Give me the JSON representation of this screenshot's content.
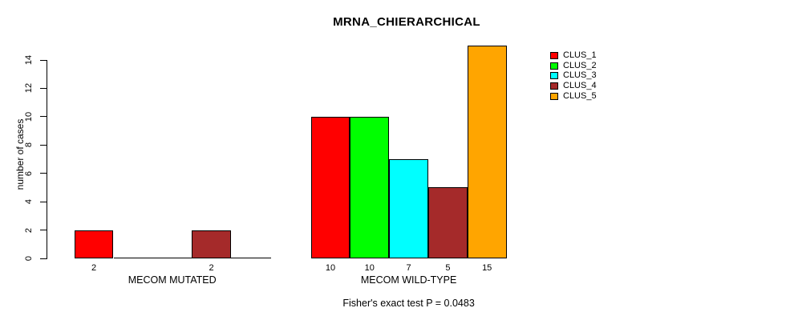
{
  "chart_data": {
    "type": "bar",
    "title": "MRNA_CHIERARCHICAL",
    "ylabel": "number of cases",
    "subtitle": "Fisher's exact test P = 0.0483",
    "yticks": [
      0,
      2,
      4,
      6,
      8,
      10,
      12,
      14
    ],
    "ylim": [
      0,
      15
    ],
    "grid": false,
    "legend_position": "top-right",
    "categories": [
      "CLUS_1",
      "CLUS_2",
      "CLUS_3",
      "CLUS_4",
      "CLUS_5"
    ],
    "colors": [
      "#FF0000",
      "#00FF00",
      "#00FFFF",
      "#A52A2A",
      "#FFA500"
    ],
    "axis_color": "#000000",
    "background": "#FFFFFF",
    "panels": [
      {
        "label": "MECOM MUTATED",
        "values": [
          2,
          0,
          0,
          2,
          0
        ],
        "bar_value_labels": [
          "2",
          "2"
        ]
      },
      {
        "label": "MECOM WILD-TYPE",
        "values": [
          10,
          10,
          7,
          5,
          15
        ],
        "bar_value_labels": [
          "10",
          "10",
          "7",
          "5",
          "15"
        ]
      }
    ]
  }
}
